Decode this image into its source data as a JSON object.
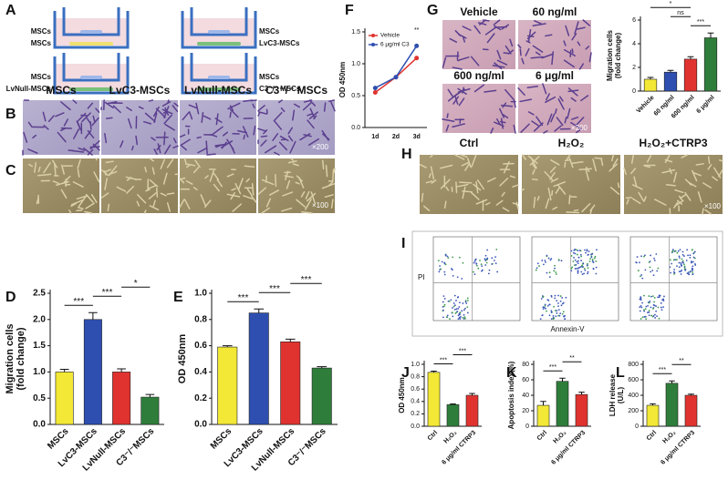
{
  "panel_labels": [
    "A",
    "B",
    "C",
    "D",
    "E",
    "F",
    "G",
    "H",
    "I",
    "J",
    "K",
    "L"
  ],
  "schematic": [
    [
      "MSCs",
      "MSCs"
    ],
    [
      "MSCs",
      "LvC3-MSCs"
    ],
    [
      "MSCs",
      "LvNull-MSCs"
    ],
    [
      "MSCs",
      "C3⁻/⁻ MSCs"
    ]
  ],
  "micrograph_headers": [
    "MSCs",
    "LvC3-MSCs",
    "LvNull-MSCs",
    "C3⁻/⁻ MSCs"
  ],
  "magnification_b": "×200",
  "magnification_c": "×100",
  "g_images": [
    "Vehicle",
    "60 ng/ml",
    "600 ng/ml",
    "6 μg/ml"
  ],
  "magnification_g": "×200",
  "h_headers": [
    "Ctrl",
    "H₂O₂",
    "H₂O₂+CTRP3"
  ],
  "magnification_h": "×100",
  "flow": {
    "ylabel": "PI",
    "xlabel": "Annexin-V"
  },
  "chart_data": [
    {
      "type": "bar",
      "ylabel": [
        "Migration cells",
        "(fold change)"
      ],
      "categories": [
        "MSCs",
        "LvC3-MSCs",
        "LvNull-MSCs",
        "C3⁻/⁻MSCs"
      ],
      "values": [
        1.0,
        2.0,
        1.0,
        0.52
      ],
      "errors": [
        0.05,
        0.13,
        0.06,
        0.05
      ],
      "colors": [
        "#f2e835",
        "#2e4fb0",
        "#e0332f",
        "#2e7d3a"
      ],
      "ylim": [
        0,
        2.5
      ],
      "yticks": [
        {
          "value": 0,
          "label": "0.0"
        },
        0.5,
        {
          "value": 1,
          "label": "1.0"
        },
        1.5,
        {
          "value": 2,
          "label": "2.0"
        },
        2.5
      ],
      "significance": [
        {
          "pair": [
            0,
            1
          ],
          "label": "***"
        },
        {
          "pair": [
            1,
            2
          ],
          "label": "***"
        },
        {
          "pair": [
            2,
            3
          ],
          "label": "*"
        }
      ]
    },
    {
      "type": "bar",
      "ylabel": [
        "OD 450nm"
      ],
      "categories": [
        "MSCs",
        "LvC3-MSCs",
        "LvNull-MSCs",
        "C3⁻/⁻MSCs"
      ],
      "values": [
        0.59,
        0.85,
        0.63,
        0.43
      ],
      "errors": [
        0.01,
        0.03,
        0.02,
        0.01
      ],
      "colors": [
        "#f2e835",
        "#2e4fb0",
        "#e0332f",
        "#2e7d3a"
      ],
      "ylim": [
        0,
        1.0
      ],
      "yticks": [
        {
          "value": 0,
          "label": "0.0"
        },
        0.2,
        0.4,
        0.6,
        0.8,
        {
          "value": 1,
          "label": "1.0"
        }
      ],
      "significance": [
        {
          "pair": [
            0,
            1
          ],
          "label": "***"
        },
        {
          "pair": [
            1,
            2
          ],
          "label": "***"
        },
        {
          "pair": [
            2,
            3
          ],
          "label": "***"
        }
      ]
    },
    {
      "type": "line",
      "ylabel": [
        "OD 450nm"
      ],
      "categories": [
        "1d",
        "2d",
        "3d"
      ],
      "series": [
        {
          "name": "Vehicle",
          "color": "#e0332f",
          "values": [
            0.55,
            0.79,
            1.09
          ]
        },
        {
          "name": "6 μg/ml C3",
          "color": "#2e4fb0",
          "values": [
            0.62,
            0.79,
            1.28
          ]
        }
      ],
      "ylim": [
        0,
        1.5
      ],
      "yticks": [
        {
          "value": 0,
          "label": "0.0"
        },
        0.5,
        {
          "value": 1,
          "label": "1.0"
        },
        1.5
      ],
      "annotation": "**"
    },
    {
      "type": "bar",
      "ylabel": [
        "Migration cells",
        "(fold change)"
      ],
      "categories": [
        "Vehicle",
        "60 ng/ml",
        "600 ng/ml",
        "6 μg/ml"
      ],
      "values": [
        1.0,
        1.6,
        2.7,
        4.5
      ],
      "errors": [
        0.15,
        0.15,
        0.2,
        0.4
      ],
      "colors": [
        "#f2e835",
        "#2e4fb0",
        "#e0332f",
        "#2e7d3a"
      ],
      "ylim": [
        0,
        6
      ],
      "yticks": [
        0,
        2,
        4,
        6
      ],
      "significance": [
        {
          "pair": [
            2,
            3
          ],
          "label": "***"
        },
        {
          "pair": [
            1,
            2
          ],
          "label": "ns"
        },
        {
          "pair": [
            0,
            2
          ],
          "label": "*"
        }
      ]
    },
    {
      "type": "bar",
      "ylabel": [
        "OD 450nm"
      ],
      "categories": [
        "Ctrl",
        "H₂O₂",
        "6 μg/ml CTRP3"
      ],
      "values": [
        0.87,
        0.35,
        0.5
      ],
      "errors": [
        0.02,
        0.01,
        0.03
      ],
      "colors": [
        "#f2e835",
        "#2e7d3a",
        "#e0332f"
      ],
      "ylim": [
        0,
        1.0
      ],
      "yticks": [
        {
          "value": 0,
          "label": "0.0"
        },
        0.2,
        0.4,
        0.6,
        0.8,
        {
          "value": 1,
          "label": "1.0"
        }
      ],
      "significance": [
        {
          "pair": [
            0,
            1
          ],
          "label": "***"
        },
        {
          "pair": [
            1,
            2
          ],
          "label": "***"
        }
      ]
    },
    {
      "type": "bar",
      "ylabel": [
        "Apoptosis index(%)"
      ],
      "categories": [
        "Ctrl",
        "H₂O₂",
        "6 μg/ml CTRP3"
      ],
      "values": [
        27,
        58,
        41
      ],
      "errors": [
        5,
        4,
        3
      ],
      "colors": [
        "#f2e835",
        "#2e7d3a",
        "#e0332f"
      ],
      "ylim": [
        0,
        80
      ],
      "yticks": [
        0,
        20,
        40,
        60,
        80
      ],
      "significance": [
        {
          "pair": [
            0,
            1
          ],
          "label": "***"
        },
        {
          "pair": [
            1,
            2
          ],
          "label": "**"
        }
      ]
    },
    {
      "type": "bar",
      "ylabel": [
        "LDH release",
        "(U/L)"
      ],
      "categories": [
        "Ctrl",
        "H₂O₂",
        "6 μg/ml CTRP3"
      ],
      "values": [
        270,
        555,
        400
      ],
      "errors": [
        20,
        30,
        15
      ],
      "colors": [
        "#f2e835",
        "#2e7d3a",
        "#e0332f"
      ],
      "ylim": [
        0,
        800
      ],
      "yticks": [
        0,
        200,
        400,
        600,
        800
      ],
      "significance": [
        {
          "pair": [
            0,
            1
          ],
          "label": "***"
        },
        {
          "pair": [
            1,
            2
          ],
          "label": "**"
        }
      ]
    }
  ]
}
